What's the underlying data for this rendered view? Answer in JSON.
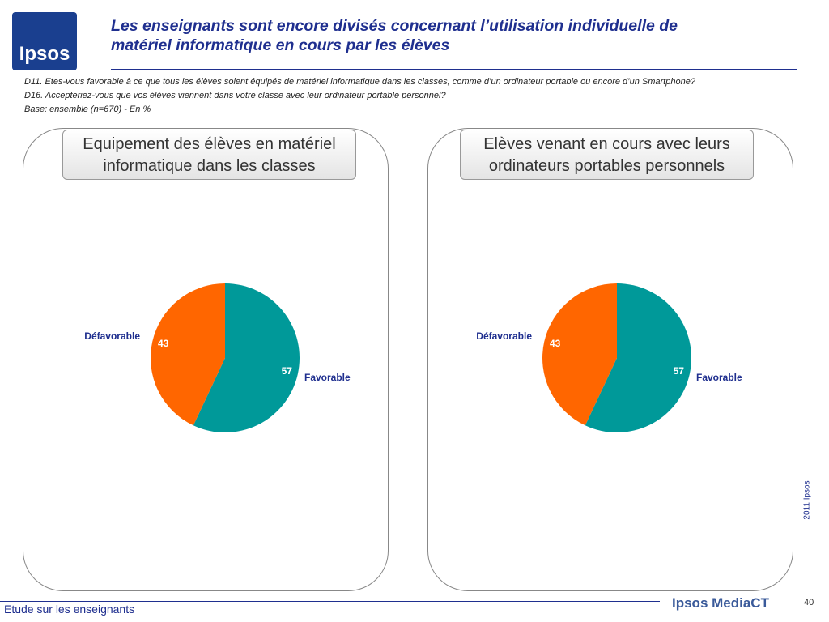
{
  "logo": "Ipsos",
  "header": {
    "title": [
      "Les enseignants sont encore divisés concernant l’utilisation individuelle de",
      "matériel informatique en cours par les élèves"
    ],
    "notes": [
      "D11. Etes-vous favorable à ce que tous les élèves soient équipés de matériel informatique dans les classes, comme d’un ordinateur portable ou encore d’un Smartphone?",
      "D16. Accepteriez-vous que vos élèves viennent dans votre classe avec leur ordinateur portable personnel?",
      "Base: ensemble (n=670) - En %"
    ]
  },
  "chart_data": [
    {
      "type": "pie",
      "title": [
        "Equipement des élèves en matériel",
        "informatique dans les classes"
      ],
      "categories": [
        "Favorable",
        "Défavorable"
      ],
      "values": [
        57,
        43
      ],
      "colors": [
        "#009999",
        "#ff6600"
      ]
    },
    {
      "type": "pie",
      "title": [
        "Elèves venant en cours avec leurs",
        "ordinateurs portables personnels"
      ],
      "categories": [
        "Favorable",
        "Défavorable"
      ],
      "values": [
        57,
        43
      ],
      "colors": [
        "#009999",
        "#ff6600"
      ]
    }
  ],
  "footer": {
    "study": "Etude sur les enseignants",
    "brand": "Ipsos MediaCT",
    "page": "40",
    "copyright": "2011 Ipsos"
  }
}
